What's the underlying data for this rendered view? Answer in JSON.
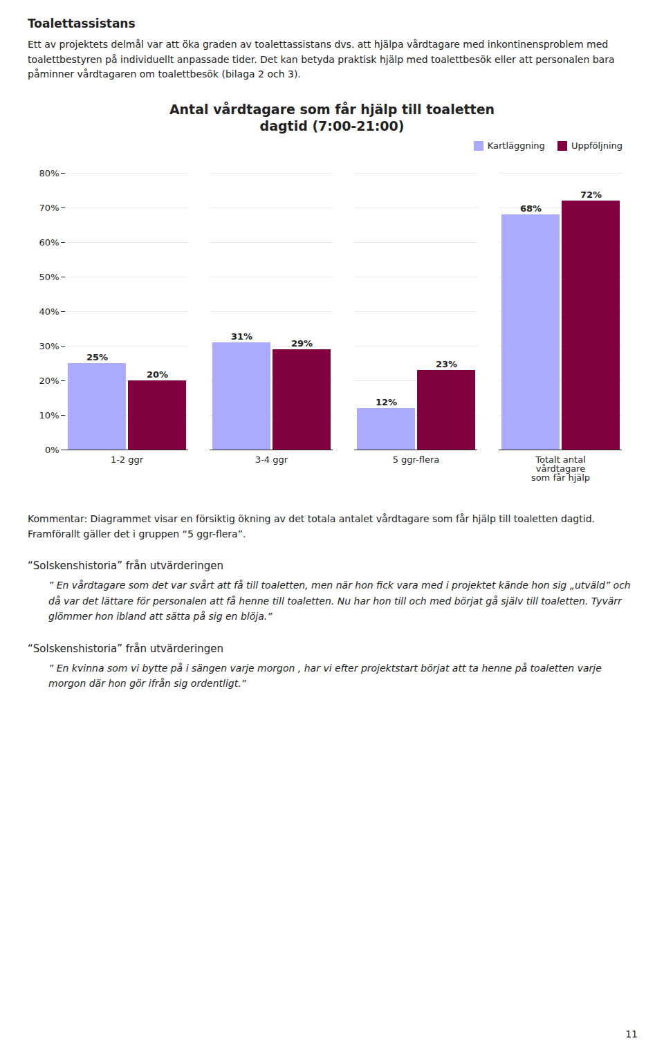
{
  "chart_data": {
    "type": "bar",
    "title": "Antal vårdtagare som får hjälp till toaletten",
    "subtitle": "dagtid (7:00-21:00)",
    "categories": [
      "1-2 ggr",
      "3-4 ggr",
      "5 ggr-flera",
      "Totalt antal\nvårdtagare\nsom får hjälp"
    ],
    "series": [
      {
        "name": "Kartläggning",
        "color": "#aaaaff",
        "values": [
          25,
          31,
          12,
          68
        ],
        "value_labels": [
          "25%",
          "31%",
          "12%",
          "68%"
        ]
      },
      {
        "name": "Uppföljning",
        "color": "#800040",
        "values": [
          20,
          29,
          23,
          72
        ],
        "value_labels": [
          "20%",
          "29%",
          "23%",
          "72%"
        ]
      }
    ],
    "ylim": [
      0,
      80
    ],
    "yticks": [
      {
        "value": 0,
        "label": "0%"
      },
      {
        "value": 10,
        "label": "10%"
      },
      {
        "value": 20,
        "label": "20%"
      },
      {
        "value": 30,
        "label": "30%"
      },
      {
        "value": 40,
        "label": "40%"
      },
      {
        "value": 50,
        "label": "50%"
      },
      {
        "value": 60,
        "label": "60%"
      },
      {
        "value": 70,
        "label": "70%"
      },
      {
        "value": 80,
        "label": "80%"
      }
    ],
    "grid": true,
    "legend": "upper right",
    "data_labels": true,
    "annotations": [
      "Toalettassistans",
      "Ett av projektets delmål var att öka graden av toalettassistans dvs. att hjälpa vårdtagare med inkontinensproblem med toalettbestyren på individuellt anpassade tider. Det kan betyda praktisk hjälp med toalettbesök eller att personalen bara påminner vårdtagaren om toalettbesök (bilaga 2 och 3).",
      "Kommentar: Diagrammet visar en försiktig ökning av det totala antalet vårdtagare som får hjälp till toaletten dagtid. Framförallt gäller det i gruppen “5 ggr-flera”.",
      "“Solskenshistoria” från utvärderingen",
      "” En vårdtagare som det var svårt att få till toaletten, men när hon fick vara med i projektet kände hon sig „utväld” och då var det lättare för personalen att få henne till toaletten. Nu har hon till och med börjat gå själv till toaletten. Tyvärr glömmer hon ibland att sätta på sig en blöja.”",
      "“Solskenshistoria” från utvärderingen",
      "” En kvinna som vi bytte på i sängen varje morgon , har vi efter projektstart börjat att ta henne på toaletten varje morgon där hon gör ifrån sig ordentligt.”",
      "11"
    ]
  }
}
